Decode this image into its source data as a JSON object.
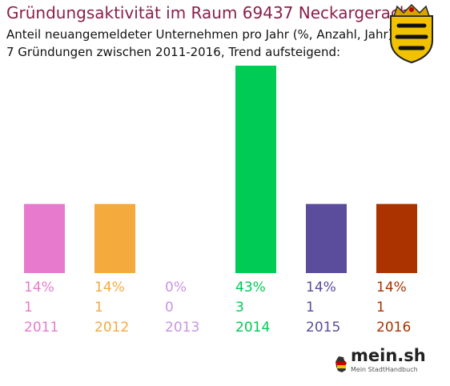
{
  "chart_data": {
    "type": "bar",
    "title": "Gründungsaktivität im Raum 69437 Neckargerach",
    "subtitle_lines": [
      "Anteil neuangemeldeter Unternehmen pro Jahr (%, Anzahl, Jahr)",
      "7 Gründungen zwischen 2011-2016, Trend aufsteigend:"
    ],
    "categories": [
      "2011",
      "2012",
      "2013",
      "2014",
      "2015",
      "2016"
    ],
    "values": [
      1,
      1,
      0,
      3,
      1,
      1
    ],
    "percent_labels": [
      "14%",
      "14%",
      "0%",
      "43%",
      "14%",
      "14%"
    ],
    "count_labels": [
      "1",
      "1",
      "0",
      "3",
      "1",
      "1"
    ],
    "colors": [
      "#e87acd",
      "#f5aa3d",
      "#c995e2",
      "#00cc55",
      "#5c4d9c",
      "#aa3300"
    ],
    "ylim": [
      0,
      3
    ],
    "grid": false,
    "legend": "none"
  },
  "logo": {
    "name": "mein.sh",
    "tagline": "Mein StadtHandbuch"
  },
  "icons": {
    "coat_of_arms": "baden-wuerttemberg-coat-of-arms-icon",
    "logo_mark": "germany-map-icon"
  }
}
